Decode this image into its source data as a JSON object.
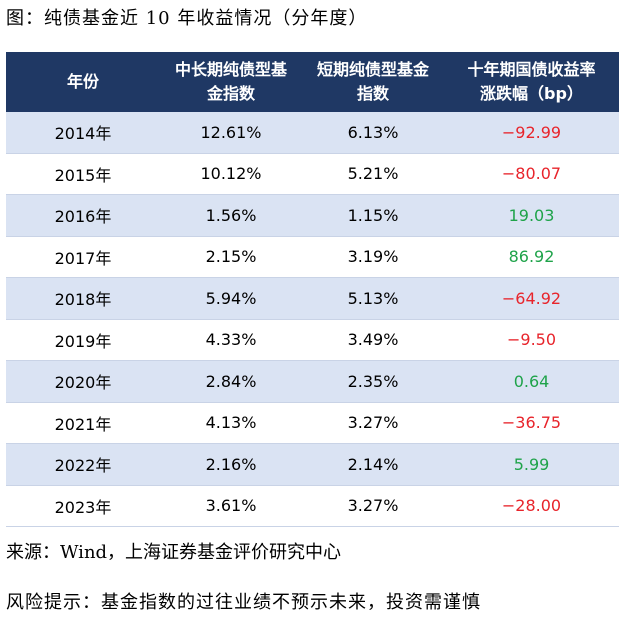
{
  "header": {
    "title": "图：纯债基金近 10 年收益情况（分年度）"
  },
  "table": {
    "columns": [
      "年份",
      "中长期纯债型基金指数",
      "短期纯债型基金指数",
      "十年期国债收益率涨跌幅（bp）"
    ],
    "rows": [
      [
        "2014年",
        "12.61%",
        "6.13%",
        "−92.99"
      ],
      [
        "2015年",
        "10.12%",
        "5.21%",
        "−80.07"
      ],
      [
        "2016年",
        "1.56%",
        "1.15%",
        "19.03"
      ],
      [
        "2017年",
        "2.15%",
        "3.19%",
        "86.92"
      ],
      [
        "2018年",
        "5.94%",
        "5.13%",
        "−64.92"
      ],
      [
        "2019年",
        "4.33%",
        "3.49%",
        "−9.50"
      ],
      [
        "2020年",
        "2.84%",
        "2.35%",
        "0.64"
      ],
      [
        "2021年",
        "4.13%",
        "3.27%",
        "−36.75"
      ],
      [
        "2022年",
        "2.16%",
        "2.14%",
        "5.99"
      ],
      [
        "2023年",
        "3.61%",
        "3.27%",
        "−28.00"
      ]
    ]
  },
  "footer": {
    "source": "来源：Wind，上海证券基金评价研究中心",
    "risk": "风险提示：基金指数的过往业绩不预示未来，投资需谨慎"
  }
}
